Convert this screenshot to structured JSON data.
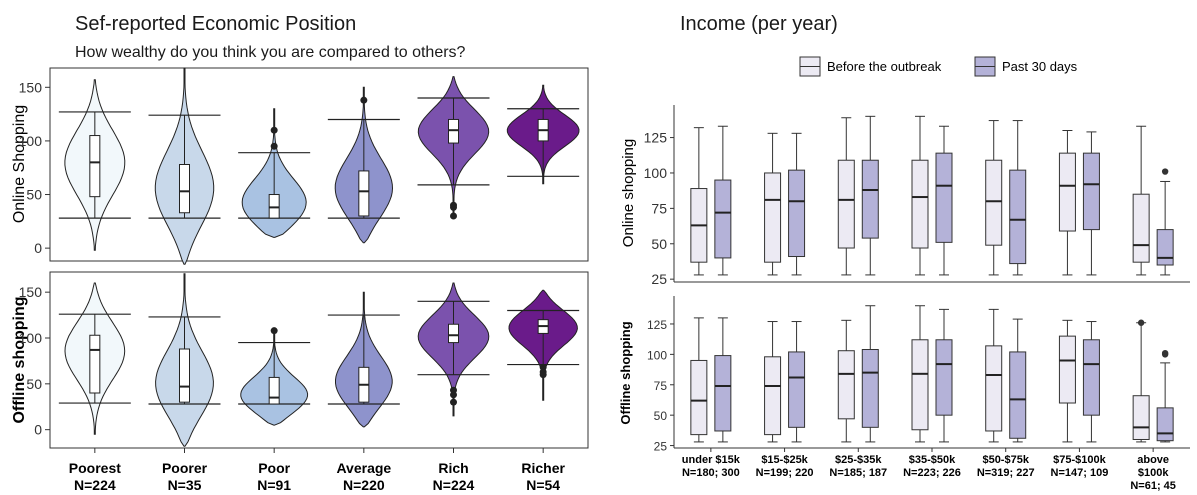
{
  "chart_data": [
    {
      "type": "violin",
      "title": "Sef-reported Economic Position",
      "subtitle": "How wealthy do you think you are compared to others?",
      "categories": [
        "Poorest",
        "Poorer",
        "Poor",
        "Average",
        "Rich",
        "Richer"
      ],
      "category_counts": [
        "N=224",
        "N=35",
        "N=91",
        "N=220",
        "N=224",
        "N=54"
      ],
      "colors": [
        "#f2f8fb",
        "#c8d8ea",
        "#a9c2e2",
        "#8e93cc",
        "#7b52ad",
        "#6a1b8a"
      ],
      "panels": [
        {
          "ylabel": "Online Shopping",
          "ylim": [
            -12,
            168
          ],
          "yticks": [
            0,
            50,
            100,
            150
          ],
          "whisker_low": [
            28,
            28,
            28,
            28,
            59,
            67
          ],
          "whisker_high": [
            127,
            124,
            89,
            120,
            140,
            130
          ],
          "box_q1": [
            48,
            33,
            28,
            30,
            98,
            100
          ],
          "box_median": [
            80,
            53,
            38,
            53,
            110,
            110
          ],
          "box_q3": [
            105,
            78,
            50,
            72,
            120,
            120
          ],
          "min": [
            -2,
            -15,
            10,
            5,
            30,
            60
          ],
          "max": [
            157,
            168,
            130,
            150,
            160,
            152
          ],
          "outliers": [
            [],
            [],
            [
              95,
              110
            ],
            [
              138
            ],
            [
              30,
              40,
              38
            ],
            []
          ]
        },
        {
          "ylabel": "Offline shopping",
          "ylim": [
            -20,
            172
          ],
          "yticks": [
            0,
            50,
            100,
            150
          ],
          "whisker_low": [
            29,
            28,
            28,
            28,
            60,
            71
          ],
          "whisker_high": [
            126,
            123,
            95,
            125,
            140,
            130
          ],
          "box_q1": [
            40,
            30,
            28,
            30,
            95,
            105
          ],
          "box_median": [
            87,
            47,
            35,
            49,
            103,
            113
          ],
          "box_q3": [
            103,
            88,
            57,
            68,
            115,
            120
          ],
          "min": [
            -5,
            -18,
            5,
            3,
            15,
            32
          ],
          "max": [
            160,
            170,
            110,
            150,
            160,
            152
          ],
          "outliers": [
            [],
            [],
            [
              108
            ],
            [],
            [
              30,
              38,
              43
            ],
            [
              60,
              63,
              68
            ]
          ]
        }
      ]
    },
    {
      "type": "boxplot",
      "title": "Income (per year)",
      "legend": {
        "position": "top-right",
        "entries": [
          "Before the outbreak",
          "Past 30 days"
        ],
        "colors": [
          "#eceaf3",
          "#b4b2d8"
        ]
      },
      "categories": [
        "under $15k",
        "$15-$25k",
        "$25-$35k",
        "$35-$50k",
        "$50-$75k",
        "$75-$100k",
        "above $100k"
      ],
      "category_counts": [
        "N=180; 300",
        "N=199; 220",
        "N=185; 187",
        "N=223; 226",
        "N=319; 227",
        "N=147; 109",
        "N=61; 45"
      ],
      "panels": [
        {
          "ylabel": "Online shopping",
          "ylim": [
            23,
            148
          ],
          "yticks": [
            25,
            50,
            75,
            100,
            125
          ],
          "series": [
            {
              "name": "Before the outbreak",
              "whisker_low": [
                28,
                28,
                28,
                28,
                28,
                28,
                28
              ],
              "q1": [
                37,
                37,
                47,
                47,
                49,
                59,
                37
              ],
              "median": [
                63,
                81,
                81,
                83,
                80,
                91,
                49
              ],
              "q3": [
                89,
                100,
                109,
                109,
                109,
                114,
                85
              ],
              "whisker_high": [
                132,
                128,
                139,
                140,
                137,
                130,
                133
              ],
              "outliers": [
                [],
                [],
                [],
                [],
                [],
                [],
                []
              ]
            },
            {
              "name": "Past 30 days",
              "whisker_low": [
                28,
                28,
                28,
                28,
                28,
                28,
                28
              ],
              "q1": [
                40,
                41,
                54,
                51,
                36,
                60,
                35
              ],
              "median": [
                72,
                80,
                88,
                91,
                67,
                92,
                40
              ],
              "q3": [
                95,
                102,
                109,
                114,
                102,
                114,
                60
              ],
              "whisker_high": [
                133,
                128,
                140,
                133,
                137,
                129,
                94
              ],
              "outliers": [
                [],
                [],
                [],
                [],
                [],
                [],
                [
                  101
                ]
              ]
            }
          ]
        },
        {
          "ylabel": "Offline shopping",
          "ylim": [
            23,
            148
          ],
          "yticks": [
            25,
            50,
            75,
            100,
            125
          ],
          "series": [
            {
              "name": "Before the outbreak",
              "whisker_low": [
                28,
                28,
                28,
                28,
                28,
                28,
                28
              ],
              "q1": [
                34,
                34,
                47,
                38,
                37,
                60,
                30
              ],
              "median": [
                62,
                74,
                84,
                84,
                83,
                95,
                40
              ],
              "q3": [
                95,
                98,
                103,
                112,
                107,
                115,
                66
              ],
              "whisker_high": [
                130,
                127,
                128,
                140,
                137,
                128,
                126
              ],
              "outliers": [
                [],
                [],
                [],
                [],
                [],
                [],
                [
                  126
                ]
              ]
            },
            {
              "name": "Past 30 days",
              "whisker_low": [
                28,
                28,
                28,
                28,
                28,
                28,
                28
              ],
              "q1": [
                37,
                40,
                40,
                50,
                31,
                50,
                29
              ],
              "median": [
                74,
                81,
                85,
                92,
                63,
                92,
                35
              ],
              "q3": [
                99,
                102,
                104,
                112,
                102,
                112,
                56
              ],
              "whisker_high": [
                130,
                127,
                140,
                137,
                129,
                127,
                93
              ],
              "outliers": [
                [],
                [],
                [],
                [],
                [],
                [],
                [
                  100,
                  101
                ]
              ]
            }
          ]
        }
      ]
    }
  ]
}
